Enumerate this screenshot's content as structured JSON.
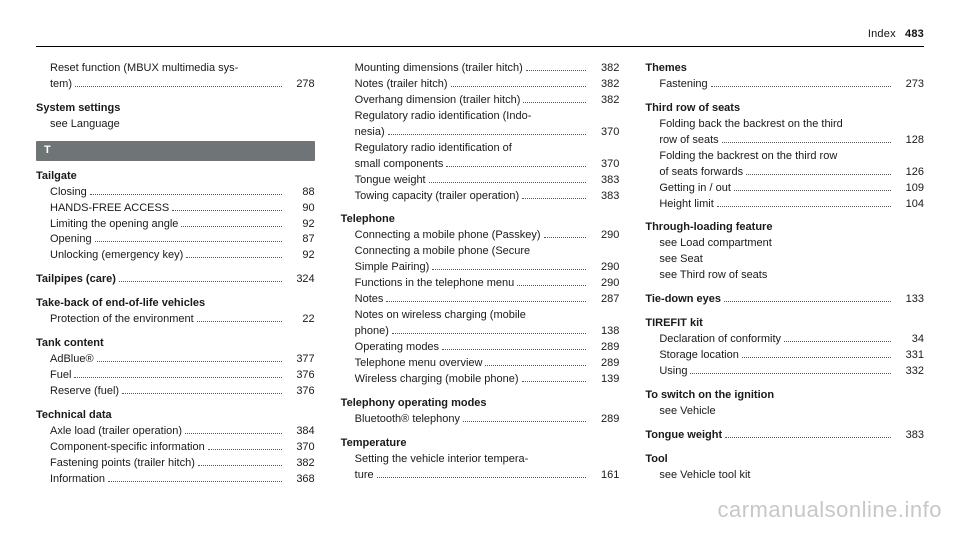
{
  "header": {
    "label": "Index",
    "page": "483"
  },
  "watermark": "carmanualsonline.info",
  "section_letter": "T",
  "col1": {
    "continued": {
      "subs": [
        {
          "label": "Reset function (MBUX multimedia sys-",
          "cont": "tem)",
          "page": "278"
        }
      ]
    },
    "system_settings": {
      "term": "System settings",
      "see": "see Language"
    },
    "tailgate": {
      "term": "Tailgate",
      "subs": [
        {
          "label": "Closing",
          "page": "88"
        },
        {
          "label": "HANDS-FREE ACCESS",
          "page": "90"
        },
        {
          "label": "Limiting the opening angle",
          "page": "92"
        },
        {
          "label": "Opening",
          "page": "87"
        },
        {
          "label": "Unlocking (emergency key)",
          "page": "92"
        }
      ]
    },
    "tailpipes": {
      "term": "Tailpipes (care)",
      "page": "324"
    },
    "takeback": {
      "term": "Take-back of end-of-life vehicles",
      "subs": [
        {
          "label": "Protection of the environment",
          "page": "22"
        }
      ]
    },
    "tank": {
      "term": "Tank content",
      "subs": [
        {
          "label": "AdBlue®",
          "page": "377"
        },
        {
          "label": "Fuel",
          "page": "376"
        },
        {
          "label": "Reserve (fuel)",
          "page": "376"
        }
      ]
    },
    "techdata": {
      "term": "Technical data",
      "subs": [
        {
          "label": "Axle load (trailer operation)",
          "page": "384"
        },
        {
          "label": "Component-specific information",
          "page": "370"
        },
        {
          "label": "Fastening points (trailer hitch)",
          "page": "382"
        },
        {
          "label": "Information",
          "page": "368"
        }
      ]
    }
  },
  "col2": {
    "techdata_cont": {
      "subs": [
        {
          "label": "Mounting dimensions (trailer hitch)",
          "page": "382"
        },
        {
          "label": "Notes (trailer hitch)",
          "page": "382"
        },
        {
          "label": "Overhang dimension (trailer hitch)",
          "page": "382"
        },
        {
          "label": "Regulatory radio identification (Indo-",
          "cont": "nesia)",
          "page": "370"
        },
        {
          "label": "Regulatory radio identification of",
          "cont": "small components",
          "page": "370"
        },
        {
          "label": "Tongue weight",
          "page": "383"
        },
        {
          "label": "Towing capacity (trailer operation)",
          "page": "383"
        }
      ]
    },
    "telephone": {
      "term": "Telephone",
      "subs": [
        {
          "label": "Connecting a mobile phone (Passkey)",
          "page": "290"
        },
        {
          "label": "Connecting a mobile phone (Secure",
          "cont": "Simple Pairing)",
          "page": "290"
        },
        {
          "label": "Functions in the telephone menu",
          "page": "290"
        },
        {
          "label": "Notes",
          "page": "287"
        },
        {
          "label": "Notes on wireless charging (mobile",
          "cont": "phone)",
          "page": "138"
        },
        {
          "label": "Operating modes",
          "page": "289"
        },
        {
          "label": "Telephone menu overview",
          "page": "289"
        },
        {
          "label": "Wireless charging (mobile phone)",
          "page": "139"
        }
      ]
    },
    "telephony_modes": {
      "term": "Telephony operating modes",
      "subs": [
        {
          "label": "Bluetooth® telephony",
          "page": "289"
        }
      ]
    },
    "temperature": {
      "term": "Temperature",
      "subs": [
        {
          "label": "Setting the vehicle interior tempera-",
          "cont": "ture",
          "page": "161"
        }
      ]
    }
  },
  "col3": {
    "themes": {
      "term": "Themes",
      "subs": [
        {
          "label": "Fastening",
          "page": "273"
        }
      ]
    },
    "third_row": {
      "term": "Third row of seats",
      "subs": [
        {
          "label": "Folding back the backrest on the third",
          "cont": "row of seats",
          "page": "128"
        },
        {
          "label": "Folding the backrest on the third row",
          "cont": "of seats forwards",
          "page": "126"
        },
        {
          "label": "Getting in / out",
          "page": "109"
        },
        {
          "label": "Height limit",
          "page": "104"
        }
      ]
    },
    "through_loading": {
      "term": "Through-loading feature",
      "sees": [
        "see Load compartment",
        "see Seat",
        "see Third row of seats"
      ]
    },
    "tiedown": {
      "term": "Tie-down eyes",
      "page": "133"
    },
    "tirefit": {
      "term": "TIREFIT kit",
      "subs": [
        {
          "label": "Declaration of conformity",
          "page": "34"
        },
        {
          "label": "Storage location",
          "page": "331"
        },
        {
          "label": "Using",
          "page": "332"
        }
      ]
    },
    "switch_ignition": {
      "term": "To switch on the ignition",
      "see": "see Vehicle"
    },
    "tongue": {
      "term": "Tongue weight",
      "page": "383"
    },
    "tool": {
      "term": "Tool",
      "see": "see Vehicle tool kit"
    }
  }
}
